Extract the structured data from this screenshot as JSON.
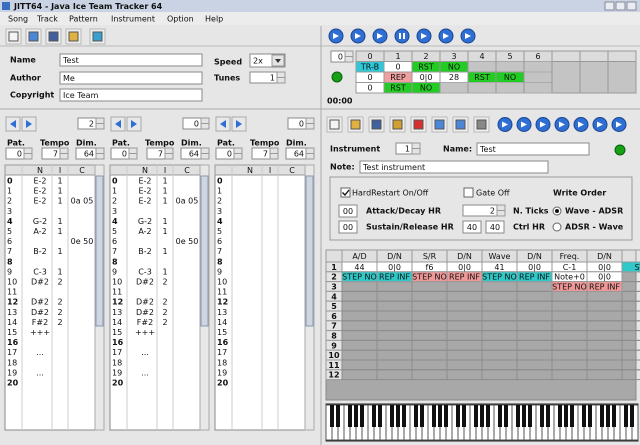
{
  "window": {
    "title": "JITT64 - Java Ice Team Tracker 64"
  },
  "menu": [
    "Song",
    "Track",
    "Pattern",
    "Instrument",
    "Option",
    "Help"
  ],
  "song": {
    "name_label": "Name",
    "name": "Test",
    "author_label": "Author",
    "author": "Me",
    "copyright_label": "Copyright",
    "copyright": "Ice Team",
    "speed_label": "Speed",
    "speed": "2x",
    "tunes_label": "Tunes",
    "tunes": "1"
  },
  "order": {
    "spinner": "0",
    "time": "00:00",
    "columns": [
      "0",
      "1",
      "2",
      "3",
      "4",
      "5",
      "6"
    ],
    "rows": [
      [
        "TR-B",
        "0",
        "RST",
        "NO",
        null,
        null,
        null
      ],
      [
        "0",
        "REP",
        "0|0",
        "28",
        "RST",
        "NO",
        null
      ],
      [
        "0",
        "RST",
        "NO",
        null,
        null,
        null,
        null
      ]
    ],
    "colors": [
      [
        "#2ec8d8",
        null,
        "#22cc22",
        "#22cc22",
        null,
        null,
        null
      ],
      [
        null,
        "#f0a0a0",
        null,
        null,
        "#22cc22",
        "#22cc22",
        null
      ],
      [
        null,
        "#22cc22",
        "#22cc22",
        null,
        null,
        null,
        null
      ]
    ]
  },
  "tracks": [
    {
      "number": "2",
      "pat_label": "Pat.",
      "pat": "0",
      "tempo_label": "Tempo",
      "tempo": "7",
      "dim_label": "Dim.",
      "dim": "64",
      "headers": [
        "N",
        "I",
        "C"
      ],
      "rows": [
        [
          "0",
          "E-2",
          "1",
          null
        ],
        [
          "1",
          "E-2",
          "1",
          null
        ],
        [
          "2",
          "E-2",
          "1",
          "0a 05"
        ],
        [
          "3",
          null,
          null,
          null
        ],
        [
          "4",
          "G-2",
          "1",
          null
        ],
        [
          "5",
          "A-2",
          "1",
          null
        ],
        [
          "6",
          null,
          null,
          "0e 50"
        ],
        [
          "7",
          "B-2",
          "1",
          null
        ],
        [
          "8",
          null,
          null,
          null
        ],
        [
          "9",
          "C-3",
          "1",
          null
        ],
        [
          "10",
          "D#2",
          "2",
          null
        ],
        [
          "11",
          null,
          null,
          null
        ],
        [
          "12",
          "D#2",
          "2",
          null
        ],
        [
          "13",
          "D#2",
          "2",
          null
        ],
        [
          "14",
          "F#2",
          "2",
          null
        ],
        [
          "15",
          "+++",
          null,
          null
        ],
        [
          "16",
          null,
          null,
          null
        ],
        [
          "17",
          "...",
          null,
          null
        ],
        [
          "18",
          null,
          null,
          null
        ],
        [
          "19",
          "...",
          null,
          null
        ],
        [
          "20",
          null,
          null,
          null
        ]
      ]
    },
    {
      "number": "0",
      "pat_label": "Pat.",
      "pat": "0",
      "tempo_label": "Tempo",
      "tempo": "7",
      "dim_label": "Dim.",
      "dim": "64",
      "headers": [
        "N",
        "I",
        "C"
      ],
      "rows": [
        [
          "0",
          "E-2",
          "1",
          null
        ],
        [
          "1",
          "E-2",
          "1",
          null
        ],
        [
          "2",
          "E-2",
          "1",
          "0a 05"
        ],
        [
          "3",
          null,
          null,
          null
        ],
        [
          "4",
          "G-2",
          "1",
          null
        ],
        [
          "5",
          "A-2",
          "1",
          null
        ],
        [
          "6",
          null,
          null,
          "0e 50"
        ],
        [
          "7",
          "B-2",
          "1",
          null
        ],
        [
          "8",
          null,
          null,
          null
        ],
        [
          "9",
          "C-3",
          "1",
          null
        ],
        [
          "10",
          "D#2",
          "2",
          null
        ],
        [
          "11",
          null,
          null,
          null
        ],
        [
          "12",
          "D#2",
          "2",
          null
        ],
        [
          "13",
          "D#2",
          "2",
          null
        ],
        [
          "14",
          "F#2",
          "2",
          null
        ],
        [
          "15",
          "+++",
          null,
          null
        ],
        [
          "16",
          null,
          null,
          null
        ],
        [
          "17",
          "...",
          null,
          null
        ],
        [
          "18",
          null,
          null,
          null
        ],
        [
          "19",
          "...",
          null,
          null
        ],
        [
          "20",
          null,
          null,
          null
        ]
      ]
    },
    {
      "number": "0",
      "pat_label": "Pat.",
      "pat": "0",
      "tempo_label": "Tempo",
      "tempo": "7",
      "dim_label": "Dim.",
      "dim": "64",
      "headers": [
        "N",
        "I",
        "C"
      ],
      "rows": [
        [
          "0",
          null,
          null,
          null
        ],
        [
          "1",
          null,
          null,
          null
        ],
        [
          "2",
          null,
          null,
          null
        ],
        [
          "3",
          null,
          null,
          null
        ],
        [
          "4",
          null,
          null,
          null
        ],
        [
          "5",
          null,
          null,
          null
        ],
        [
          "6",
          null,
          null,
          null
        ],
        [
          "7",
          null,
          null,
          null
        ],
        [
          "8",
          null,
          null,
          null
        ],
        [
          "9",
          null,
          null,
          null
        ],
        [
          "10",
          null,
          null,
          null
        ],
        [
          "11",
          null,
          null,
          null
        ],
        [
          "12",
          null,
          null,
          null
        ],
        [
          "13",
          null,
          null,
          null
        ],
        [
          "14",
          null,
          null,
          null
        ],
        [
          "15",
          null,
          null,
          null
        ],
        [
          "16",
          null,
          null,
          null
        ],
        [
          "17",
          null,
          null,
          null
        ],
        [
          "18",
          null,
          null,
          null
        ],
        [
          "19",
          null,
          null,
          null
        ],
        [
          "20",
          null,
          null,
          null
        ]
      ]
    }
  ],
  "instrument": {
    "label": "Instrument",
    "number": "1",
    "name_label": "Name:",
    "name": "Test",
    "note_label": "Note:",
    "note": "Test instrument",
    "hard_restart": "HardRestart On/Off",
    "gate_off": "Gate Off",
    "write_order": "Write Order",
    "ad_hr": "00",
    "ad_hr_label": "Attack/Decay HR",
    "ticks": "2",
    "ticks_label": "N. Ticks",
    "wave_adsr": "Wave - ADSR",
    "sr_hr": "00",
    "sr_hr_label": "Sustain/Release HR",
    "ctrl_1": "40",
    "ctrl_2": "40",
    "ctrl_label": "Ctrl HR",
    "adsr_wave": "ADSR - Wave"
  },
  "table": {
    "columns": [
      "A/D",
      "D/N",
      "S/R",
      "D/N",
      "Wave",
      "D/N",
      "Freq.",
      "D/N",
      null
    ],
    "row_numbers": [
      "1",
      "2",
      "3",
      "4",
      "5",
      "6",
      "7",
      "8",
      "9",
      "10",
      "11",
      "12"
    ],
    "rows": [
      [
        "44",
        "0|0",
        "f6",
        "0|0",
        "41",
        "0|0",
        "C-1",
        "0|0",
        "ST"
      ],
      [
        "STEP NO",
        "REP INF",
        "STEP NO",
        "REP INF",
        "STEP NO",
        "REP INF",
        "Note+0",
        "0|0",
        null
      ],
      [
        null,
        null,
        null,
        null,
        null,
        null,
        "STEP NO",
        "REP INF",
        null
      ]
    ],
    "colors": [
      [
        null,
        null,
        null,
        null,
        null,
        null,
        null,
        null,
        "#30c8c8"
      ],
      [
        "#30c8c8",
        "#30c8c8",
        "#f09898",
        "#f09898",
        "#30c8c8",
        "#30c8c8",
        null,
        null,
        null
      ],
      [
        null,
        null,
        null,
        null,
        null,
        null,
        "#f09898",
        "#f09898",
        null
      ]
    ]
  }
}
